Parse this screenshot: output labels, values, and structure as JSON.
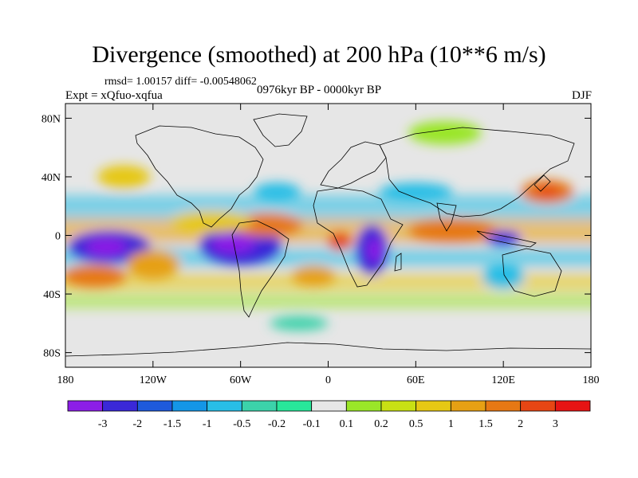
{
  "title": "Divergence (smoothed) at 200 hPa (10**6 m/s)",
  "stats": "rmsd= 1.00157  diff= -0.00548062",
  "experiment": "Expt = xQfuo-xqfua",
  "period": "0976kyr BP - 0000kyr BP",
  "season": "DJF",
  "map": {
    "projection": "cylindrical-equidistant",
    "lon_range": [
      -180,
      180
    ],
    "lat_range": [
      -90,
      90
    ],
    "xticks": [
      {
        "v": -180,
        "label": "180"
      },
      {
        "v": -120,
        "label": "120W"
      },
      {
        "v": -60,
        "label": "60W"
      },
      {
        "v": 0,
        "label": "0"
      },
      {
        "v": 60,
        "label": "60E"
      },
      {
        "v": 120,
        "label": "120E"
      },
      {
        "v": 180,
        "label": "180"
      }
    ],
    "yticks": [
      {
        "v": 80,
        "label": "80N"
      },
      {
        "v": 40,
        "label": "40N"
      },
      {
        "v": 0,
        "label": "0"
      },
      {
        "v": -40,
        "label": "40S"
      },
      {
        "v": -80,
        "label": "80S"
      }
    ]
  },
  "colorbar": {
    "colors": [
      "#8c1ee6",
      "#3a28d8",
      "#1e5adc",
      "#1496e6",
      "#28bee6",
      "#3cd2aa",
      "#28e69a",
      "#e6e6e6",
      "#9ae628",
      "#c8e014",
      "#e6c814",
      "#e6a014",
      "#e67814",
      "#e64614",
      "#e61414"
    ],
    "labels": [
      "-3",
      "-2",
      "-1.5",
      "-1",
      "-0.5",
      "-0.2",
      "-0.1",
      "0.1",
      "0.2",
      "0.5",
      "1",
      "1.5",
      "2",
      "3"
    ]
  },
  "features": [
    {
      "lon": -150,
      "lat": -8,
      "rx": 28,
      "ry": 11,
      "c": 1
    },
    {
      "lon": -152,
      "lat": -8,
      "rx": 14,
      "ry": 6,
      "c": 0
    },
    {
      "lon": -160,
      "lat": -28,
      "rx": 22,
      "ry": 8,
      "c": 12
    },
    {
      "lon": -120,
      "lat": -20,
      "rx": 18,
      "ry": 10,
      "c": 11
    },
    {
      "lon": -60,
      "lat": -7,
      "rx": 28,
      "ry": 14,
      "c": 1
    },
    {
      "lon": -65,
      "lat": -5,
      "rx": 15,
      "ry": 7,
      "c": 0
    },
    {
      "lon": -42,
      "lat": 7,
      "rx": 24,
      "ry": 8,
      "c": 12
    },
    {
      "lon": -80,
      "lat": 9,
      "rx": 28,
      "ry": 7,
      "c": 10
    },
    {
      "lon": 8,
      "lat": -4,
      "rx": 8,
      "ry": 6,
      "c": 13
    },
    {
      "lon": 30,
      "lat": -10,
      "rx": 11,
      "ry": 17,
      "c": 1
    },
    {
      "lon": 32,
      "lat": -10,
      "rx": 5,
      "ry": 8,
      "c": 0
    },
    {
      "lon": 85,
      "lat": 3,
      "rx": 30,
      "ry": 8,
      "c": 12
    },
    {
      "lon": 120,
      "lat": -2,
      "rx": 12,
      "ry": 5,
      "c": 1
    },
    {
      "lon": 150,
      "lat": 30,
      "rx": 18,
      "ry": 8,
      "c": 12
    },
    {
      "lon": 150,
      "lat": 30,
      "rx": 9,
      "ry": 4,
      "c": 13
    },
    {
      "lon": -10,
      "lat": -28,
      "rx": 15,
      "ry": 7,
      "c": 11
    },
    {
      "lon": 120,
      "lat": -28,
      "rx": 14,
      "ry": 8,
      "c": 4
    },
    {
      "lon": -35,
      "lat": 30,
      "rx": 16,
      "ry": 6,
      "c": 4
    },
    {
      "lon": 60,
      "lat": 30,
      "rx": 25,
      "ry": 6,
      "c": 4
    },
    {
      "lon": -140,
      "lat": 40,
      "rx": 18,
      "ry": 8,
      "c": 10
    },
    {
      "lon": 80,
      "lat": 70,
      "rx": 25,
      "ry": 8,
      "c": 8
    },
    {
      "lon": -20,
      "lat": -60,
      "rx": 20,
      "ry": 5,
      "c": 5
    }
  ]
}
